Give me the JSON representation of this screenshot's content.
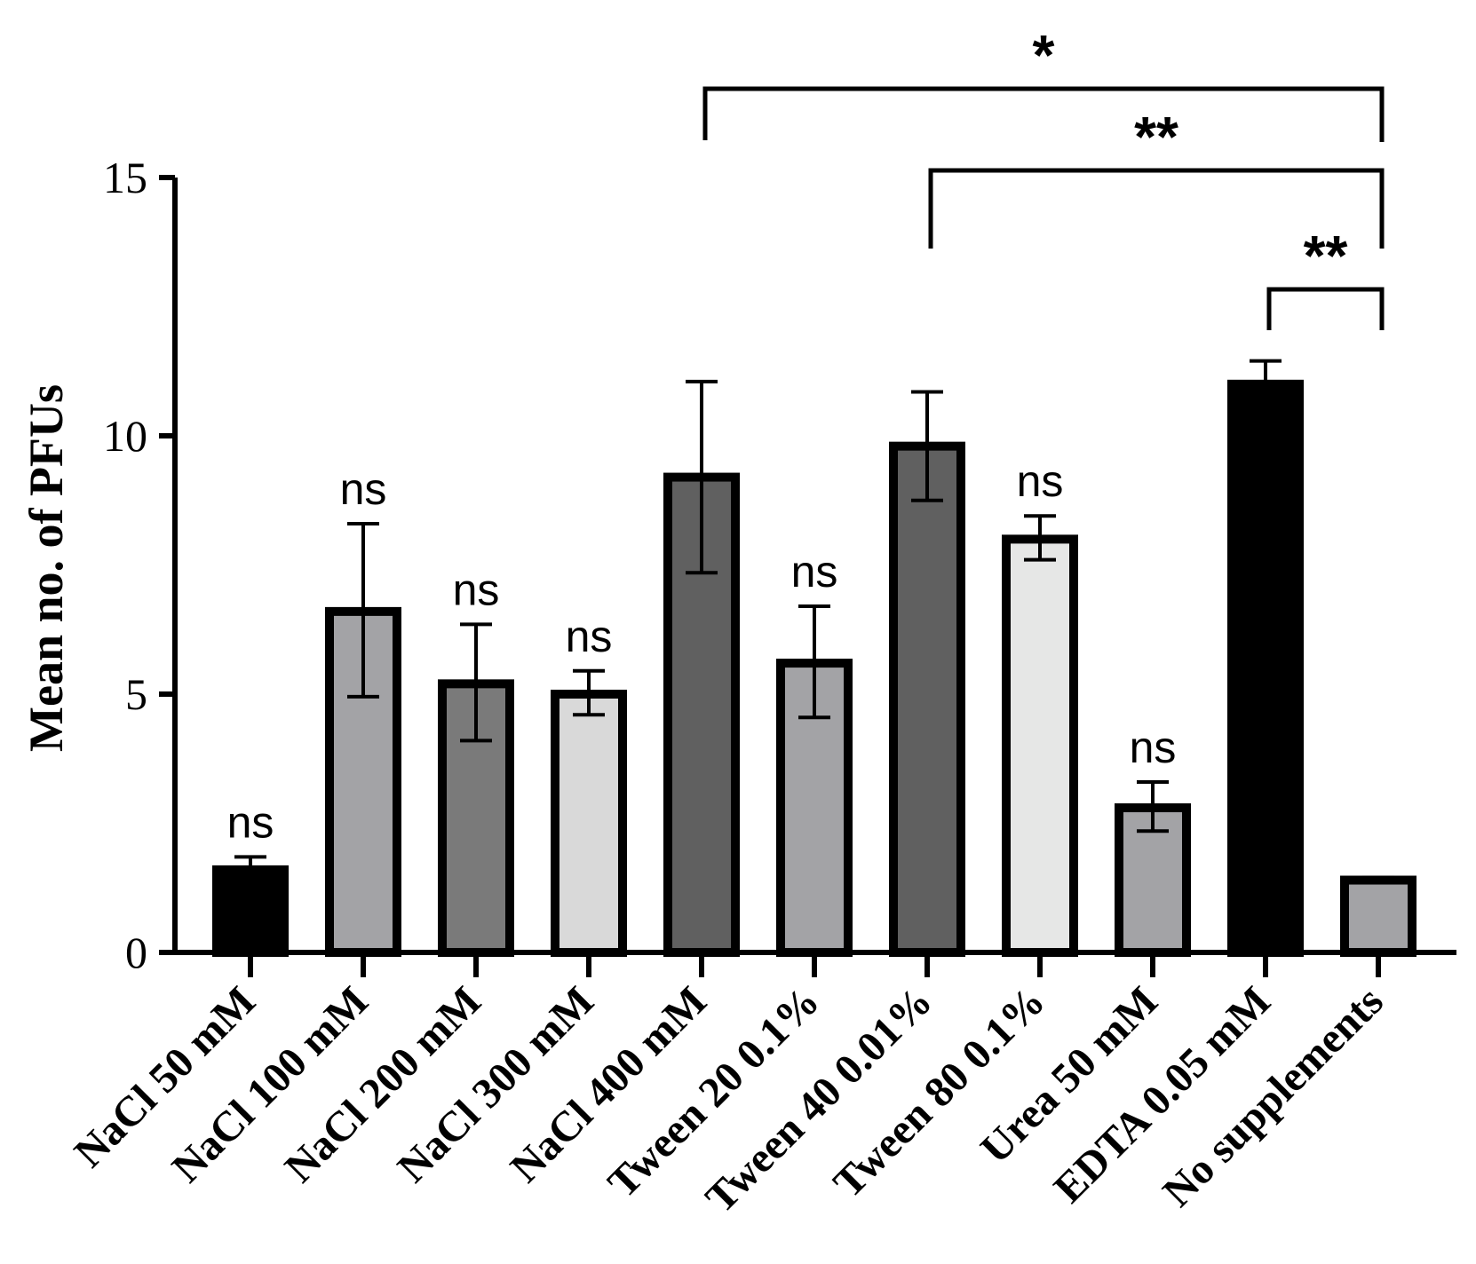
{
  "chart_data": {
    "type": "bar",
    "title": "",
    "xlabel": "",
    "ylabel": "Mean no. of PFUs",
    "ylim": [
      0,
      15
    ],
    "yticks": [
      "0",
      "5",
      "10",
      "15"
    ],
    "categories": [
      "NaCl 50 mM",
      "NaCl 100 mM",
      "NaCl 200 mM",
      "NaCl 300 mM",
      "NaCl 400 mM",
      "Tween 20 0.1%",
      "Tween 40 0.01%",
      "Tween 80 0.1%",
      "Urea 50 mM",
      "EDTA 0.05 mM",
      "No supplements"
    ],
    "values": [
      1.6,
      6.6,
      5.2,
      5.0,
      9.2,
      5.6,
      9.8,
      8.0,
      2.8,
      11.0,
      1.4
    ],
    "error_low": [
      1.6,
      4.95,
      4.1,
      4.6,
      7.35,
      4.55,
      8.75,
      7.6,
      2.35,
      11.0,
      1.4
    ],
    "error_high": [
      1.85,
      8.3,
      6.35,
      5.45,
      11.05,
      6.7,
      10.85,
      8.45,
      3.3,
      11.45,
      1.45
    ],
    "bar_colors": [
      "#000000",
      "#a3a3a6",
      "#7a7a7a",
      "#d9d9d9",
      "#606060",
      "#a3a3a6",
      "#606060",
      "#e6e7e6",
      "#a3a3a6",
      "#000000",
      "#a3a3a6"
    ],
    "significance": [
      "ns",
      "ns",
      "ns",
      "ns",
      "",
      "ns",
      "",
      "ns",
      "ns",
      "",
      ""
    ],
    "comparisons": [
      {
        "from": "NaCl 400 mM",
        "to": "No supplements",
        "label": "*"
      },
      {
        "from": "Tween 40 0.01%",
        "to": "No supplements",
        "label": "**"
      },
      {
        "from": "EDTA 0.05 mM",
        "to": "No supplements",
        "label": "**"
      }
    ]
  }
}
